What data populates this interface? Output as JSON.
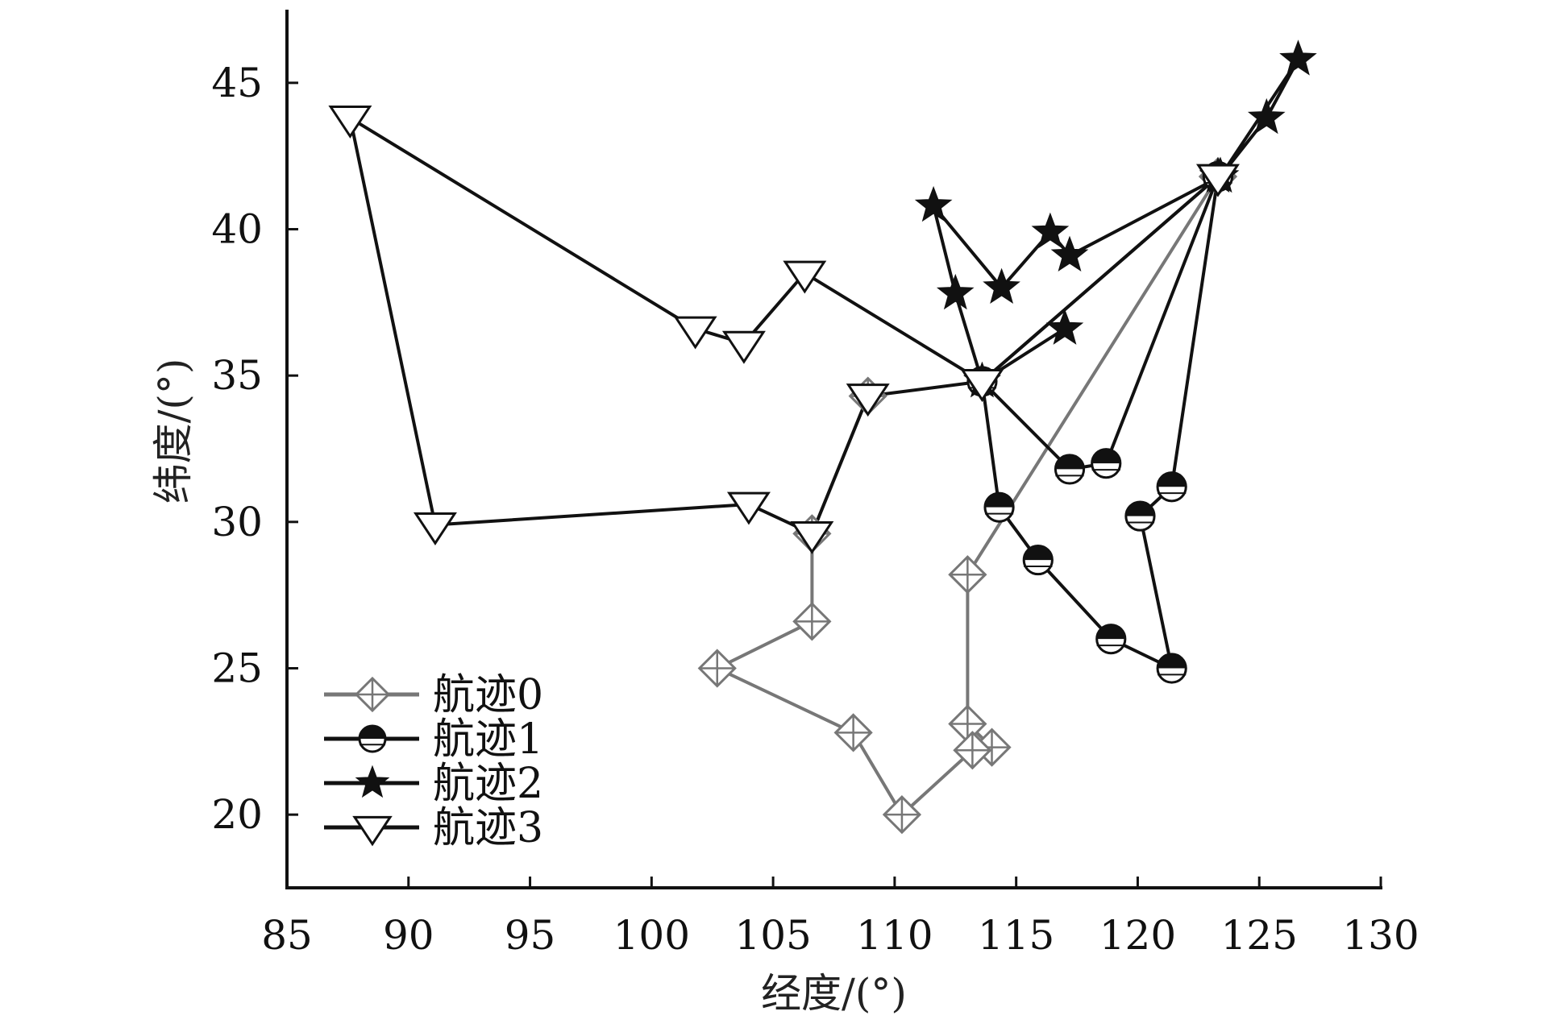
{
  "chart_data": {
    "type": "line",
    "xlabel": "经度/(°)",
    "ylabel": "纬度/(°)",
    "xlim": [
      85,
      130
    ],
    "ylim": [
      17.5,
      47.5
    ],
    "x_ticks": [
      85,
      90,
      95,
      100,
      105,
      110,
      115,
      120,
      125,
      130
    ],
    "y_ticks": [
      20,
      25,
      30,
      35,
      40,
      45
    ],
    "grid": false,
    "legend_position": "bottom-left",
    "series": [
      {
        "name": "航迹0",
        "marker": "crossed-diamond",
        "color": "#777777",
        "points": [
          [
            123.3,
            41.8
          ],
          [
            113.0,
            28.2
          ],
          [
            113.0,
            23.1
          ],
          [
            114.0,
            22.3
          ],
          [
            113.2,
            22.2
          ],
          [
            110.3,
            20.0
          ],
          [
            108.3,
            22.8
          ],
          [
            102.7,
            25.0
          ],
          [
            106.6,
            26.6
          ],
          [
            106.6,
            29.6
          ],
          [
            108.9,
            34.3
          ]
        ]
      },
      {
        "name": "航迹1",
        "marker": "half-filled-circle",
        "color": "#111111",
        "points": [
          [
            123.3,
            41.8
          ],
          [
            121.4,
            31.2
          ],
          [
            120.1,
            30.2
          ],
          [
            121.4,
            25.0
          ],
          [
            118.9,
            26.0
          ],
          [
            115.9,
            28.7
          ],
          [
            114.3,
            30.5
          ],
          [
            113.6,
            34.8
          ],
          [
            117.2,
            31.8
          ],
          [
            118.7,
            32.0
          ],
          [
            123.3,
            41.8
          ]
        ]
      },
      {
        "name": "航迹2",
        "marker": "star",
        "color": "#111111",
        "points": [
          [
            123.3,
            41.8
          ],
          [
            113.6,
            34.8
          ],
          [
            117.0,
            36.6
          ],
          [
            113.6,
            34.8
          ],
          [
            112.5,
            37.8
          ],
          [
            111.6,
            40.8
          ],
          [
            114.4,
            38.0
          ],
          [
            116.4,
            39.9
          ],
          [
            117.2,
            39.1
          ],
          [
            123.4,
            41.8
          ],
          [
            125.3,
            43.8
          ],
          [
            126.6,
            45.8
          ],
          [
            123.4,
            41.8
          ]
        ]
      },
      {
        "name": "航迹3",
        "marker": "down-triangle",
        "color": "#111111",
        "points": [
          [
            123.3,
            41.8
          ],
          [
            113.6,
            34.8
          ],
          [
            108.9,
            34.3
          ],
          [
            106.6,
            29.6
          ],
          [
            104.0,
            30.6
          ],
          [
            91.1,
            29.9
          ],
          [
            87.6,
            43.8
          ],
          [
            101.8,
            36.6
          ],
          [
            103.8,
            36.1
          ],
          [
            106.3,
            38.5
          ],
          [
            113.6,
            34.8
          ]
        ]
      }
    ]
  }
}
